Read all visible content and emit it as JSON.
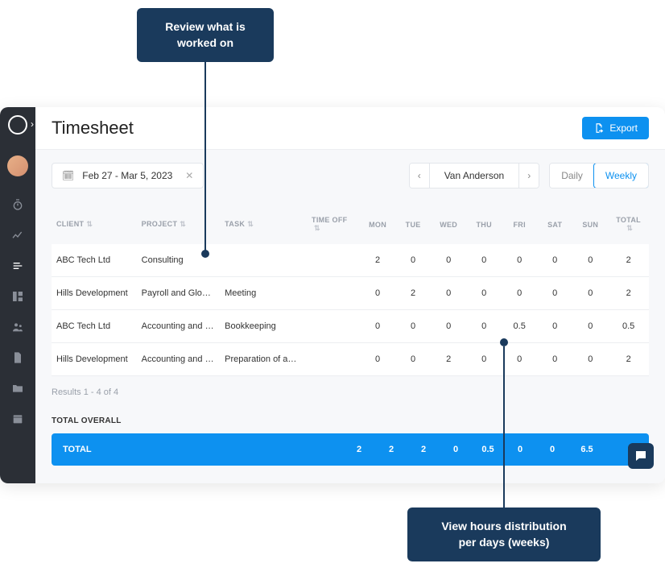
{
  "callouts": {
    "top": "Review what is\nworked on",
    "bottom": "View hours distribution\nper days (weeks)"
  },
  "page": {
    "title": "Timesheet",
    "export_label": "Export"
  },
  "controls": {
    "date_range": "Feb 27 - Mar 5, 2023",
    "person": "Van Anderson",
    "daily_label": "Daily",
    "weekly_label": "Weekly"
  },
  "table": {
    "headers": {
      "client": "CLIENT",
      "project": "PROJECT",
      "task": "TASK",
      "time_off": "TIME OFF",
      "days": [
        "MON",
        "TUE",
        "WED",
        "THU",
        "FRI",
        "SAT",
        "SUN"
      ],
      "total": "TOTAL"
    },
    "rows": [
      {
        "client": "ABC Tech Ltd",
        "project": "Consulting",
        "task": "",
        "time_off": "",
        "days": [
          "2",
          "0",
          "0",
          "0",
          "0",
          "0",
          "0"
        ],
        "total": "2"
      },
      {
        "client": "Hills Development",
        "project": "Payroll and Glob…",
        "task": "Meeting",
        "time_off": "",
        "days": [
          "0",
          "2",
          "0",
          "0",
          "0",
          "0",
          "0"
        ],
        "total": "2"
      },
      {
        "client": "ABC Tech Ltd",
        "project": "Accounting and …",
        "task": "Bookkeeping",
        "time_off": "",
        "days": [
          "0",
          "0",
          "0",
          "0",
          "0.5",
          "0",
          "0"
        ],
        "total": "0.5"
      },
      {
        "client": "Hills Development",
        "project": "Accounting and …",
        "task": "Preparation of a…",
        "time_off": "",
        "days": [
          "0",
          "0",
          "2",
          "0",
          "0",
          "0",
          "0"
        ],
        "total": "2"
      }
    ],
    "results_text": "Results 1 - 4 of 4",
    "total_overall_label": "TOTAL OVERALL",
    "total_row": {
      "label": "TOTAL",
      "days": [
        "2",
        "2",
        "2",
        "0",
        "0.5",
        "0",
        "0"
      ],
      "total": "6.5"
    }
  },
  "colors": {
    "callout_bg": "#1a3a5c",
    "accent": "#0d91f0",
    "sidebar_bg": "#2b2f36",
    "content_bg": "#f7f8fa",
    "border": "#e3e6eb",
    "muted_text": "#9aa0aa"
  }
}
